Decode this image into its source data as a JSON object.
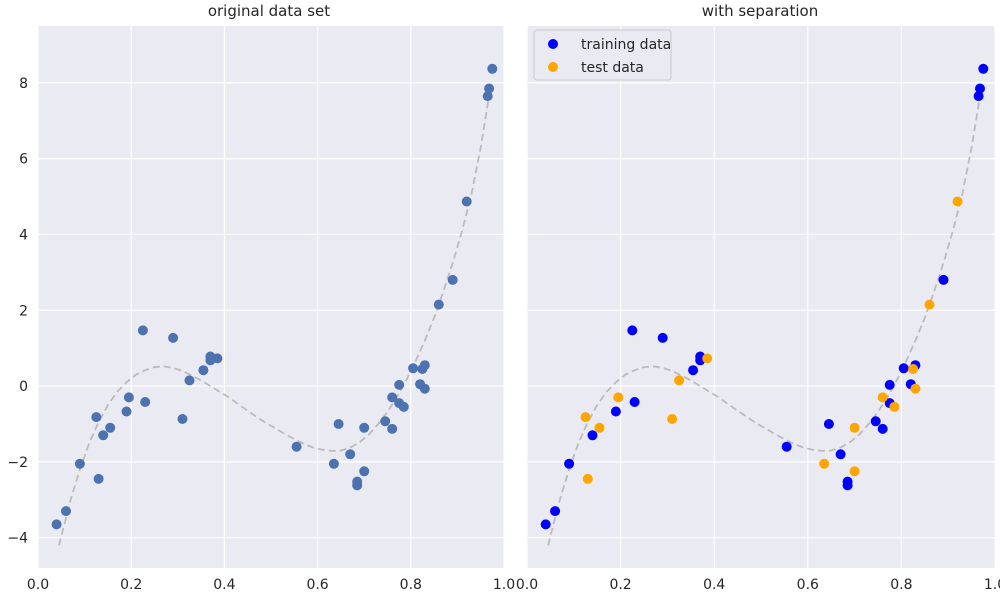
{
  "chart_data": [
    {
      "type": "scatter",
      "title": "original data set",
      "xlim": [
        0.0,
        1.0
      ],
      "ylim": [
        -4.8,
        9.5
      ],
      "xticks": [
        0.0,
        0.2,
        0.4,
        0.6,
        0.8,
        1.0
      ],
      "xtick_labels": [
        "0.0",
        "0.2",
        "0.4",
        "0.6",
        "0.8",
        "1.0"
      ],
      "yticks": [
        -4,
        -2,
        0,
        2,
        4,
        6,
        8
      ],
      "ytick_labels": [
        "−4",
        "−2",
        "0",
        "2",
        "4",
        "6",
        "8"
      ],
      "grid": true,
      "series": [
        {
          "color": "#4c72b0",
          "points": [
            [
              0.04,
              -3.65
            ],
            [
              0.06,
              -3.3
            ],
            [
              0.09,
              -2.05
            ],
            [
              0.125,
              -0.82
            ],
            [
              0.13,
              -2.45
            ],
            [
              0.14,
              -1.3
            ],
            [
              0.155,
              -1.1
            ],
            [
              0.19,
              -0.67
            ],
            [
              0.195,
              -0.3
            ],
            [
              0.225,
              1.47
            ],
            [
              0.23,
              -0.42
            ],
            [
              0.29,
              1.27
            ],
            [
              0.31,
              -0.87
            ],
            [
              0.325,
              0.15
            ],
            [
              0.355,
              0.42
            ],
            [
              0.37,
              0.78
            ],
            [
              0.37,
              0.68
            ],
            [
              0.385,
              0.73
            ],
            [
              0.555,
              -1.6
            ],
            [
              0.635,
              -2.05
            ],
            [
              0.645,
              -1.0
            ],
            [
              0.67,
              -1.8
            ],
            [
              0.685,
              -2.52
            ],
            [
              0.685,
              -2.62
            ],
            [
              0.7,
              -2.25
            ],
            [
              0.7,
              -1.1
            ],
            [
              0.745,
              -0.93
            ],
            [
              0.76,
              -0.3
            ],
            [
              0.76,
              -1.13
            ],
            [
              0.775,
              0.03
            ],
            [
              0.775,
              -0.45
            ],
            [
              0.785,
              -0.55
            ],
            [
              0.805,
              0.47
            ],
            [
              0.82,
              0.05
            ],
            [
              0.825,
              0.45
            ],
            [
              0.83,
              0.55
            ],
            [
              0.83,
              -0.07
            ],
            [
              0.86,
              2.15
            ],
            [
              0.89,
              2.8
            ],
            [
              0.92,
              4.87
            ],
            [
              0.965,
              7.65
            ],
            [
              0.968,
              7.85
            ],
            [
              0.975,
              8.37
            ]
          ]
        }
      ],
      "curve": {
        "style": "dashed",
        "color": "#bbbbbb",
        "x": [
          0.045,
          0.07,
          0.09,
          0.11,
          0.13,
          0.15,
          0.17,
          0.19,
          0.21,
          0.23,
          0.25,
          0.27,
          0.29,
          0.31,
          0.33,
          0.35,
          0.37,
          0.39,
          0.41,
          0.43,
          0.45,
          0.47,
          0.49,
          0.51,
          0.53,
          0.55,
          0.57,
          0.59,
          0.61,
          0.63,
          0.65,
          0.67,
          0.69,
          0.71,
          0.73,
          0.75,
          0.77,
          0.79,
          0.81,
          0.83,
          0.85,
          0.87,
          0.89,
          0.91,
          0.93,
          0.95,
          0.97
        ],
        "y": [
          -4.2,
          -3.0,
          -2.2,
          -1.5,
          -0.95,
          -0.5,
          -0.15,
          0.1,
          0.3,
          0.42,
          0.5,
          0.52,
          0.48,
          0.4,
          0.28,
          0.15,
          0.0,
          -0.15,
          -0.3,
          -0.48,
          -0.65,
          -0.82,
          -0.98,
          -1.12,
          -1.27,
          -1.4,
          -1.52,
          -1.62,
          -1.68,
          -1.71,
          -1.7,
          -1.62,
          -1.48,
          -1.28,
          -1.0,
          -0.68,
          -0.3,
          0.15,
          0.65,
          1.2,
          1.8,
          2.5,
          3.25,
          4.1,
          5.05,
          6.3,
          7.8
        ]
      }
    },
    {
      "type": "scatter",
      "title": "with separation",
      "xlim": [
        0.0,
        1.0
      ],
      "ylim": [
        -4.8,
        9.5
      ],
      "xticks": [
        0.0,
        0.2,
        0.4,
        0.6,
        0.8,
        1.0
      ],
      "xtick_labels": [
        "0.0",
        "0.2",
        "0.4",
        "0.6",
        "0.8",
        "1.0"
      ],
      "yticks": [
        -4,
        -2,
        0,
        2,
        4,
        6,
        8
      ],
      "grid": true,
      "legend": {
        "placement": "top-left"
      },
      "series": [
        {
          "name": "training data",
          "color": "#0000ff",
          "points": [
            [
              0.04,
              -3.65
            ],
            [
              0.06,
              -3.3
            ],
            [
              0.09,
              -2.05
            ],
            [
              0.14,
              -1.3
            ],
            [
              0.19,
              -0.67
            ],
            [
              0.225,
              1.47
            ],
            [
              0.23,
              -0.42
            ],
            [
              0.29,
              1.27
            ],
            [
              0.355,
              0.42
            ],
            [
              0.37,
              0.78
            ],
            [
              0.37,
              0.68
            ],
            [
              0.555,
              -1.6
            ],
            [
              0.645,
              -1.0
            ],
            [
              0.67,
              -1.8
            ],
            [
              0.685,
              -2.52
            ],
            [
              0.685,
              -2.62
            ],
            [
              0.745,
              -0.93
            ],
            [
              0.76,
              -1.13
            ],
            [
              0.775,
              0.03
            ],
            [
              0.775,
              -0.45
            ],
            [
              0.805,
              0.47
            ],
            [
              0.82,
              0.05
            ],
            [
              0.83,
              0.55
            ],
            [
              0.89,
              2.8
            ],
            [
              0.965,
              7.65
            ],
            [
              0.968,
              7.85
            ],
            [
              0.975,
              8.37
            ]
          ]
        },
        {
          "name": "test data",
          "color": "#ffa500",
          "points": [
            [
              0.125,
              -0.82
            ],
            [
              0.13,
              -2.45
            ],
            [
              0.155,
              -1.1
            ],
            [
              0.195,
              -0.3
            ],
            [
              0.31,
              -0.87
            ],
            [
              0.325,
              0.15
            ],
            [
              0.385,
              0.73
            ],
            [
              0.635,
              -2.05
            ],
            [
              0.7,
              -2.25
            ],
            [
              0.7,
              -1.1
            ],
            [
              0.76,
              -0.3
            ],
            [
              0.785,
              -0.55
            ],
            [
              0.825,
              0.45
            ],
            [
              0.83,
              -0.07
            ],
            [
              0.86,
              2.15
            ],
            [
              0.92,
              4.87
            ]
          ]
        }
      ],
      "curve": {
        "style": "dashed",
        "color": "#bbbbbb",
        "x": [
          0.045,
          0.07,
          0.09,
          0.11,
          0.13,
          0.15,
          0.17,
          0.19,
          0.21,
          0.23,
          0.25,
          0.27,
          0.29,
          0.31,
          0.33,
          0.35,
          0.37,
          0.39,
          0.41,
          0.43,
          0.45,
          0.47,
          0.49,
          0.51,
          0.53,
          0.55,
          0.57,
          0.59,
          0.61,
          0.63,
          0.65,
          0.67,
          0.69,
          0.71,
          0.73,
          0.75,
          0.77,
          0.79,
          0.81,
          0.83,
          0.85,
          0.87,
          0.89,
          0.91,
          0.93,
          0.95,
          0.97
        ],
        "y": [
          -4.2,
          -3.0,
          -2.2,
          -1.5,
          -0.95,
          -0.5,
          -0.15,
          0.1,
          0.3,
          0.42,
          0.5,
          0.52,
          0.48,
          0.4,
          0.28,
          0.15,
          0.0,
          -0.15,
          -0.3,
          -0.48,
          -0.65,
          -0.82,
          -0.98,
          -1.12,
          -1.27,
          -1.4,
          -1.52,
          -1.62,
          -1.68,
          -1.71,
          -1.7,
          -1.62,
          -1.48,
          -1.28,
          -1.0,
          -0.68,
          -0.3,
          0.15,
          0.65,
          1.2,
          1.8,
          2.5,
          3.25,
          4.1,
          5.05,
          6.3,
          7.8
        ]
      }
    }
  ],
  "theme": {
    "axes_background": "#eaeaf2",
    "grid_color": "#ffffff"
  }
}
